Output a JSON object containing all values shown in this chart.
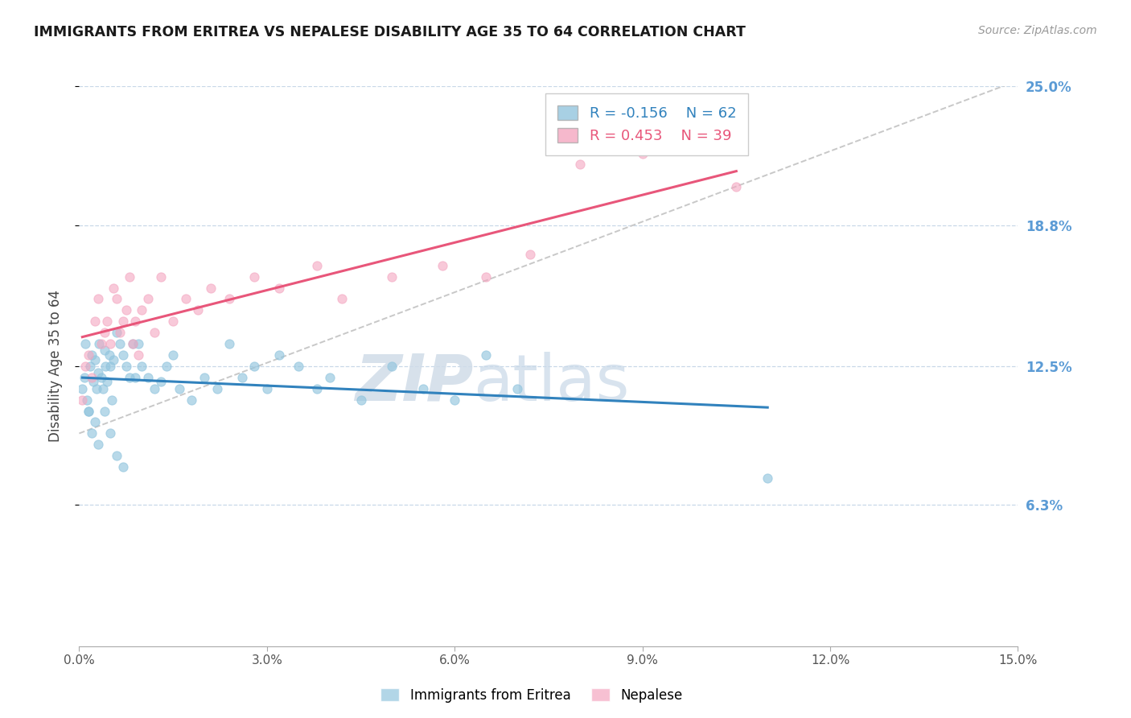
{
  "title": "IMMIGRANTS FROM ERITREA VS NEPALESE DISABILITY AGE 35 TO 64 CORRELATION CHART",
  "source": "Source: ZipAtlas.com",
  "ylabel": "Disability Age 35 to 64",
  "xlim": [
    0.0,
    15.0
  ],
  "ylim": [
    0.0,
    25.0
  ],
  "xtick_values": [
    0.0,
    3.0,
    6.0,
    9.0,
    12.0,
    15.0
  ],
  "ytick_values": [
    6.3,
    12.5,
    18.8,
    25.0
  ],
  "ytick_labels": [
    "6.3%",
    "12.5%",
    "18.8%",
    "25.0%"
  ],
  "blue_color": "#92c5de",
  "pink_color": "#f4a6c0",
  "trend_blue": "#3182bd",
  "trend_pink": "#e8567a",
  "trend_gray_color": "#c8c8c8",
  "r_blue": -0.156,
  "n_blue": 62,
  "r_pink": 0.453,
  "n_pink": 39,
  "legend_label_blue": "Immigrants from Eritrea",
  "legend_label_pink": "Nepalese",
  "watermark_zip": "ZIP",
  "watermark_atlas": "atlas",
  "blue_scatter_x": [
    0.05,
    0.08,
    0.1,
    0.12,
    0.15,
    0.18,
    0.2,
    0.22,
    0.25,
    0.28,
    0.3,
    0.32,
    0.35,
    0.38,
    0.4,
    0.42,
    0.45,
    0.48,
    0.5,
    0.52,
    0.55,
    0.6,
    0.65,
    0.7,
    0.75,
    0.8,
    0.85,
    0.9,
    0.95,
    1.0,
    1.1,
    1.2,
    1.3,
    1.4,
    1.5,
    1.6,
    1.8,
    2.0,
    2.2,
    2.4,
    2.6,
    2.8,
    3.0,
    3.2,
    3.5,
    3.8,
    4.0,
    4.5,
    5.0,
    5.5,
    6.0,
    6.5,
    7.0,
    0.15,
    0.2,
    0.25,
    0.3,
    0.4,
    0.5,
    0.6,
    0.7,
    11.0
  ],
  "blue_scatter_y": [
    11.5,
    12.0,
    13.5,
    11.0,
    10.5,
    12.5,
    13.0,
    11.8,
    12.8,
    11.5,
    12.2,
    13.5,
    12.0,
    11.5,
    13.2,
    12.5,
    11.8,
    13.0,
    12.5,
    11.0,
    12.8,
    14.0,
    13.5,
    13.0,
    12.5,
    12.0,
    13.5,
    12.0,
    13.5,
    12.5,
    12.0,
    11.5,
    11.8,
    12.5,
    13.0,
    11.5,
    11.0,
    12.0,
    11.5,
    13.5,
    12.0,
    12.5,
    11.5,
    13.0,
    12.5,
    11.5,
    12.0,
    11.0,
    12.5,
    11.5,
    11.0,
    13.0,
    11.5,
    10.5,
    9.5,
    10.0,
    9.0,
    10.5,
    9.5,
    8.5,
    8.0,
    7.5
  ],
  "pink_scatter_x": [
    0.05,
    0.1,
    0.15,
    0.2,
    0.25,
    0.3,
    0.35,
    0.4,
    0.45,
    0.5,
    0.55,
    0.6,
    0.65,
    0.7,
    0.75,
    0.8,
    0.85,
    0.9,
    0.95,
    1.0,
    1.1,
    1.2,
    1.3,
    1.5,
    1.7,
    1.9,
    2.1,
    2.4,
    2.8,
    3.2,
    3.8,
    4.2,
    5.0,
    5.8,
    6.5,
    7.2,
    8.0,
    9.0,
    10.5
  ],
  "pink_scatter_y": [
    11.0,
    12.5,
    13.0,
    12.0,
    14.5,
    15.5,
    13.5,
    14.0,
    14.5,
    13.5,
    16.0,
    15.5,
    14.0,
    14.5,
    15.0,
    16.5,
    13.5,
    14.5,
    13.0,
    15.0,
    15.5,
    14.0,
    16.5,
    14.5,
    15.5,
    15.0,
    16.0,
    15.5,
    16.5,
    16.0,
    17.0,
    15.5,
    16.5,
    17.0,
    16.5,
    17.5,
    21.5,
    22.0,
    20.5
  ]
}
